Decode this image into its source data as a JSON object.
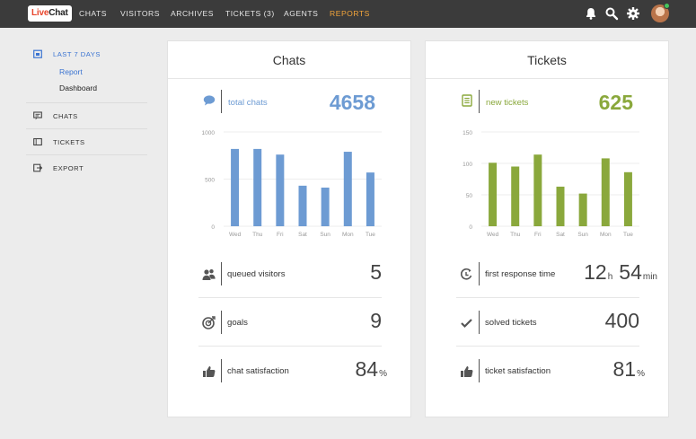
{
  "brand": {
    "logo_part1": "Live",
    "logo_part2": "Chat"
  },
  "nav": {
    "items": [
      {
        "label": "CHATS"
      },
      {
        "label": "VISITORS"
      },
      {
        "label": "ARCHIVES"
      },
      {
        "label": "TICKETS (3)"
      },
      {
        "label": "AGENTS"
      },
      {
        "label": "REPORTS",
        "active": true
      }
    ],
    "icons": [
      "bell-icon",
      "search-icon",
      "gear-icon"
    ],
    "avatar_status_color": "#44c45c"
  },
  "sidebar": {
    "items": [
      {
        "label": "LAST 7 DAYS",
        "icon": "calendar-icon",
        "active": true,
        "children": [
          {
            "label": "Report",
            "active": true
          },
          {
            "label": "Dashboard"
          }
        ]
      },
      {
        "label": "CHATS",
        "icon": "chat-bubble-icon"
      },
      {
        "label": "TICKETS",
        "icon": "ticket-icon"
      },
      {
        "label": "EXPORT",
        "icon": "export-icon"
      }
    ]
  },
  "colors": {
    "chats_accent": "#6d9bd3",
    "tickets_accent": "#8aa83c",
    "active_nav": "#f3a53b",
    "active_sidebar": "#3b74d1"
  },
  "chats": {
    "title": "Chats",
    "kpi_label": "total chats",
    "kpi_value": "4658",
    "stats": [
      {
        "icon": "users-icon",
        "label": "queued visitors",
        "value": "5",
        "unit": ""
      },
      {
        "icon": "target-icon",
        "label": "goals",
        "value": "9",
        "unit": ""
      },
      {
        "icon": "thumbs-up-icon",
        "label": "chat satisfaction",
        "value": "84",
        "unit": "%"
      }
    ]
  },
  "tickets": {
    "title": "Tickets",
    "kpi_label": "new tickets",
    "kpi_value": "625",
    "stats": [
      {
        "icon": "clock-icon",
        "label": "first response time",
        "hours": "12",
        "hours_unit": "h",
        "minutes": "54",
        "minutes_unit": "min"
      },
      {
        "icon": "checkmark-icon",
        "label": "solved tickets",
        "value": "400",
        "unit": ""
      },
      {
        "icon": "thumbs-up-icon",
        "label": "ticket satisfaction",
        "value": "81",
        "unit": "%"
      }
    ]
  },
  "chart_data": [
    {
      "type": "bar",
      "categories": [
        "Wed",
        "Thu",
        "Fri",
        "Sat",
        "Sun",
        "Mon",
        "Tue"
      ],
      "values": [
        820,
        820,
        760,
        430,
        410,
        790,
        570
      ],
      "yticks": [
        0,
        500,
        1000
      ],
      "ylim": [
        0,
        1000
      ],
      "color": "#6d9bd3"
    },
    {
      "type": "bar",
      "categories": [
        "Wed",
        "Thu",
        "Fri",
        "Sat",
        "Sun",
        "Mon",
        "Tue"
      ],
      "values": [
        101,
        95,
        114,
        63,
        52,
        108,
        86
      ],
      "yticks": [
        0,
        50,
        100,
        150
      ],
      "ylim": [
        0,
        150
      ],
      "color": "#8aa83c"
    }
  ]
}
